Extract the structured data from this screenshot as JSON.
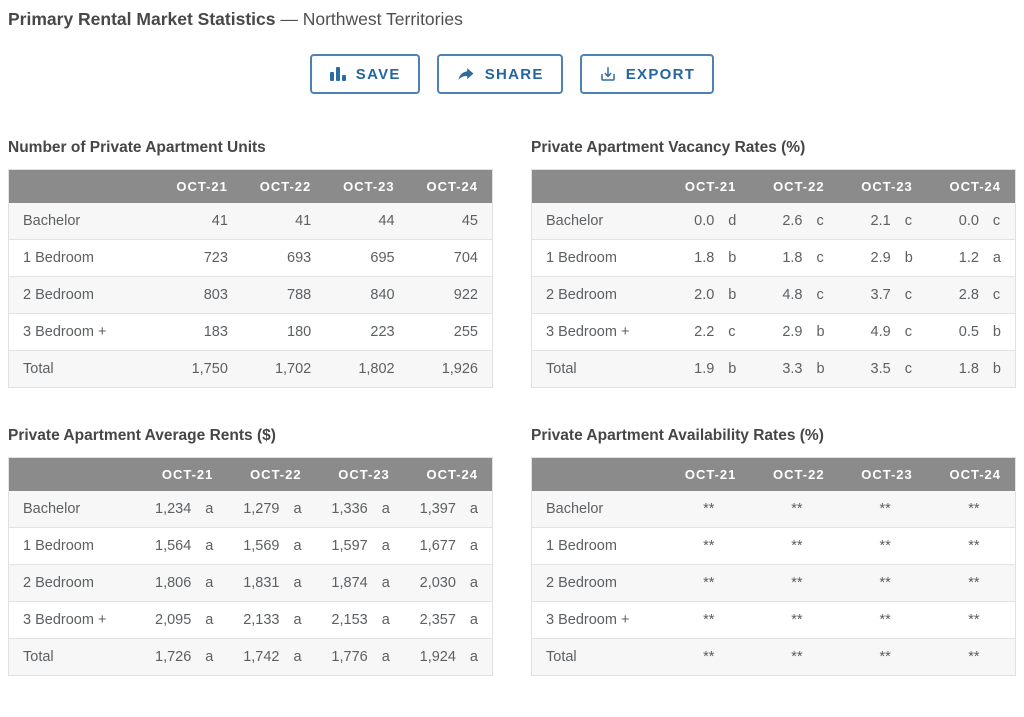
{
  "page": {
    "title_bold": "Primary Rental Market Statistics",
    "title_rest": "— Northwest Territories"
  },
  "toolbar": {
    "save_label": "SAVE",
    "share_label": "SHARE",
    "export_label": "EXPORT"
  },
  "icons": {
    "save": "bar-chart-icon",
    "share": "share-arrow-icon",
    "export": "download-icon"
  },
  "colors": {
    "accent_blue": "#26669e",
    "button_border_blue": "#4d83b3",
    "table_header_gray": "#8b8b8b",
    "row_alt_gray": "#f7f7f7",
    "cell_text": "#5c6063",
    "title_text": "#484848"
  },
  "columns": [
    "OCT-21",
    "OCT-22",
    "OCT-23",
    "OCT-24"
  ],
  "tables": [
    {
      "title": "Number of Private Apartment Units",
      "type": "plain",
      "rows": [
        {
          "label": "Bachelor",
          "values": [
            "41",
            "41",
            "44",
            "45"
          ]
        },
        {
          "label": "1 Bedroom",
          "values": [
            "723",
            "693",
            "695",
            "704"
          ]
        },
        {
          "label": "2 Bedroom",
          "values": [
            "803",
            "788",
            "840",
            "922"
          ]
        },
        {
          "label": "3 Bedroom +",
          "values": [
            "183",
            "180",
            "223",
            "255"
          ]
        },
        {
          "label": "Total",
          "values": [
            "1,750",
            "1,702",
            "1,802",
            "1,926"
          ]
        }
      ]
    },
    {
      "title": "Private Apartment Vacancy Rates (%)",
      "type": "lettered",
      "rows": [
        {
          "label": "Bachelor",
          "values": [
            "0.0",
            "2.6",
            "2.1",
            "0.0"
          ],
          "letters": [
            "d",
            "c",
            "c",
            "c"
          ]
        },
        {
          "label": "1 Bedroom",
          "values": [
            "1.8",
            "1.8",
            "2.9",
            "1.2"
          ],
          "letters": [
            "b",
            "c",
            "b",
            "a"
          ]
        },
        {
          "label": "2 Bedroom",
          "values": [
            "2.0",
            "4.8",
            "3.7",
            "2.8"
          ],
          "letters": [
            "b",
            "c",
            "c",
            "c"
          ]
        },
        {
          "label": "3 Bedroom +",
          "values": [
            "2.2",
            "2.9",
            "4.9",
            "0.5"
          ],
          "letters": [
            "c",
            "b",
            "c",
            "b"
          ]
        },
        {
          "label": "Total",
          "values": [
            "1.9",
            "3.3",
            "3.5",
            "1.8"
          ],
          "letters": [
            "b",
            "b",
            "c",
            "b"
          ]
        }
      ]
    },
    {
      "title": "Private Apartment Average Rents ($)",
      "type": "lettered",
      "rows": [
        {
          "label": "Bachelor",
          "values": [
            "1,234",
            "1,279",
            "1,336",
            "1,397"
          ],
          "letters": [
            "a",
            "a",
            "a",
            "a"
          ]
        },
        {
          "label": "1 Bedroom",
          "values": [
            "1,564",
            "1,569",
            "1,597",
            "1,677"
          ],
          "letters": [
            "a",
            "a",
            "a",
            "a"
          ]
        },
        {
          "label": "2 Bedroom",
          "values": [
            "1,806",
            "1,831",
            "1,874",
            "2,030"
          ],
          "letters": [
            "a",
            "a",
            "a",
            "a"
          ]
        },
        {
          "label": "3 Bedroom +",
          "values": [
            "2,095",
            "2,133",
            "2,153",
            "2,357"
          ],
          "letters": [
            "a",
            "a",
            "a",
            "a"
          ]
        },
        {
          "label": "Total",
          "values": [
            "1,726",
            "1,742",
            "1,776",
            "1,924"
          ],
          "letters": [
            "a",
            "a",
            "a",
            "a"
          ]
        }
      ]
    },
    {
      "title": "Private Apartment Availability Rates (%)",
      "type": "lettered",
      "rows": [
        {
          "label": "Bachelor",
          "values": [
            "**",
            "**",
            "**",
            "**"
          ],
          "letters": [
            "",
            "",
            "",
            ""
          ]
        },
        {
          "label": "1 Bedroom",
          "values": [
            "**",
            "**",
            "**",
            "**"
          ],
          "letters": [
            "",
            "",
            "",
            ""
          ]
        },
        {
          "label": "2 Bedroom",
          "values": [
            "**",
            "**",
            "**",
            "**"
          ],
          "letters": [
            "",
            "",
            "",
            ""
          ]
        },
        {
          "label": "3 Bedroom +",
          "values": [
            "**",
            "**",
            "**",
            "**"
          ],
          "letters": [
            "",
            "",
            "",
            ""
          ]
        },
        {
          "label": "Total",
          "values": [
            "**",
            "**",
            "**",
            "**"
          ],
          "letters": [
            "",
            "",
            "",
            ""
          ]
        }
      ]
    }
  ]
}
